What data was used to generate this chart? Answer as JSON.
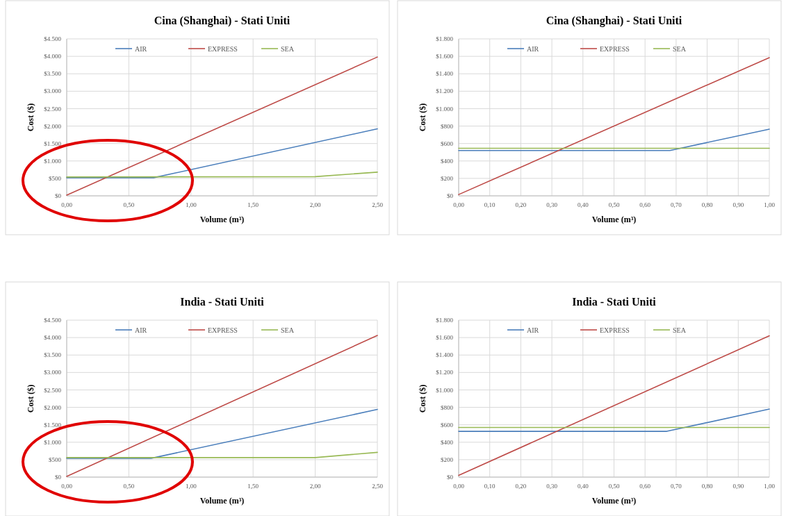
{
  "chart_data": [
    {
      "type": "line",
      "title": "Cina (Shanghai) - Stati Uniti",
      "xlabel": "Volume (m³)",
      "ylabel": "Cost ($)",
      "xlim": [
        0,
        2.5
      ],
      "xticks": [
        {
          "value": 0,
          "label": "0,00"
        },
        {
          "value": 0.5,
          "label": "0,50"
        },
        {
          "value": 1,
          "label": "1,00"
        },
        {
          "value": 1.5,
          "label": "1,50"
        },
        {
          "value": 2,
          "label": "2,00"
        },
        {
          "value": 2.5,
          "label": "2,50"
        }
      ],
      "ylim": [
        0,
        4500
      ],
      "yticks": [
        {
          "value": 0,
          "label": "$0"
        },
        {
          "value": 500,
          "label": "$500"
        },
        {
          "value": 1000,
          "label": "$1.000"
        },
        {
          "value": 1500,
          "label": "$1.500"
        },
        {
          "value": 2000,
          "label": "$2.000"
        },
        {
          "value": 2500,
          "label": "$2.500"
        },
        {
          "value": 3000,
          "label": "$3.000"
        },
        {
          "value": 3500,
          "label": "$3.500"
        },
        {
          "value": 4000,
          "label": "$4.000"
        },
        {
          "value": 4500,
          "label": "$4.500"
        }
      ],
      "grid": true,
      "legend": "top",
      "series": [
        {
          "name": "AIR",
          "color": "#4a7ebb",
          "x": [
            0,
            0.7,
            2.5
          ],
          "values": [
            520,
            520,
            1920
          ]
        },
        {
          "name": "EXPRESS",
          "color": "#be4b48",
          "x": [
            0,
            2.5
          ],
          "values": [
            20,
            3980
          ]
        },
        {
          "name": "SEA",
          "color": "#98b954",
          "x": [
            0,
            2,
            2.5
          ],
          "values": [
            540,
            550,
            680
          ]
        }
      ]
    },
    {
      "type": "line",
      "title": "Cina (Shanghai) - Stati Uniti",
      "xlabel": "Volume (m³)",
      "ylabel": "Cost ($)",
      "xlim": [
        0,
        1
      ],
      "xticks": [
        {
          "value": 0,
          "label": "0,00"
        },
        {
          "value": 0.1,
          "label": "0,10"
        },
        {
          "value": 0.2,
          "label": "0,20"
        },
        {
          "value": 0.3,
          "label": "0,30"
        },
        {
          "value": 0.4,
          "label": "0,40"
        },
        {
          "value": 0.5,
          "label": "0,50"
        },
        {
          "value": 0.6,
          "label": "0,60"
        },
        {
          "value": 0.7,
          "label": "0,70"
        },
        {
          "value": 0.8,
          "label": "0,80"
        },
        {
          "value": 0.9,
          "label": "0,90"
        },
        {
          "value": 1,
          "label": "1,00"
        }
      ],
      "ylim": [
        0,
        1800
      ],
      "yticks": [
        {
          "value": 0,
          "label": "$0"
        },
        {
          "value": 200,
          "label": "$200"
        },
        {
          "value": 400,
          "label": "$400"
        },
        {
          "value": 600,
          "label": "$600"
        },
        {
          "value": 800,
          "label": "$800"
        },
        {
          "value": 1000,
          "label": "$1.000"
        },
        {
          "value": 1200,
          "label": "$1.200"
        },
        {
          "value": 1400,
          "label": "$1.400"
        },
        {
          "value": 1600,
          "label": "$1.600"
        },
        {
          "value": 1800,
          "label": "$1.800"
        }
      ],
      "grid": true,
      "legend": "top",
      "series": [
        {
          "name": "AIR",
          "color": "#4a7ebb",
          "x": [
            0,
            0.68,
            1
          ],
          "values": [
            520,
            520,
            765
          ]
        },
        {
          "name": "EXPRESS",
          "color": "#be4b48",
          "x": [
            0,
            1
          ],
          "values": [
            15,
            1585
          ]
        },
        {
          "name": "SEA",
          "color": "#98b954",
          "x": [
            0,
            1
          ],
          "values": [
            545,
            545
          ]
        }
      ]
    },
    {
      "type": "line",
      "title": "India - Stati Uniti",
      "xlabel": "Volume (m³)",
      "ylabel": "Cost ($)",
      "xlim": [
        0,
        2.5
      ],
      "xticks": [
        {
          "value": 0,
          "label": "0,00"
        },
        {
          "value": 0.5,
          "label": "0,50"
        },
        {
          "value": 1,
          "label": "1,00"
        },
        {
          "value": 1.5,
          "label": "1,50"
        },
        {
          "value": 2,
          "label": "2,00"
        },
        {
          "value": 2.5,
          "label": "2,50"
        }
      ],
      "ylim": [
        0,
        4500
      ],
      "yticks": [
        {
          "value": 0,
          "label": "$0"
        },
        {
          "value": 500,
          "label": "$500"
        },
        {
          "value": 1000,
          "label": "$1.000"
        },
        {
          "value": 1500,
          "label": "$1.500"
        },
        {
          "value": 2000,
          "label": "$2.000"
        },
        {
          "value": 2500,
          "label": "$2.500"
        },
        {
          "value": 3000,
          "label": "$3.000"
        },
        {
          "value": 3500,
          "label": "$3.500"
        },
        {
          "value": 4000,
          "label": "$4.000"
        },
        {
          "value": 4500,
          "label": "$4.500"
        }
      ],
      "grid": true,
      "legend": "top",
      "series": [
        {
          "name": "AIR",
          "color": "#4a7ebb",
          "x": [
            0,
            0.68,
            2.5
          ],
          "values": [
            540,
            540,
            1940
          ]
        },
        {
          "name": "EXPRESS",
          "color": "#be4b48",
          "x": [
            0,
            2.5
          ],
          "values": [
            20,
            4060
          ]
        },
        {
          "name": "SEA",
          "color": "#98b954",
          "x": [
            0,
            2,
            2.5
          ],
          "values": [
            560,
            560,
            710
          ]
        }
      ]
    },
    {
      "type": "line",
      "title": "India - Stati Uniti",
      "xlabel": "Volume (m³)",
      "ylabel": "Cost ($)",
      "xlim": [
        0,
        1
      ],
      "xticks": [
        {
          "value": 0,
          "label": "0,00"
        },
        {
          "value": 0.1,
          "label": "0,10"
        },
        {
          "value": 0.2,
          "label": "0,20"
        },
        {
          "value": 0.3,
          "label": "0,30"
        },
        {
          "value": 0.4,
          "label": "0,40"
        },
        {
          "value": 0.5,
          "label": "0,50"
        },
        {
          "value": 0.6,
          "label": "0,60"
        },
        {
          "value": 0.7,
          "label": "0,70"
        },
        {
          "value": 0.8,
          "label": "0,80"
        },
        {
          "value": 0.9,
          "label": "0,90"
        },
        {
          "value": 1,
          "label": "1,00"
        }
      ],
      "ylim": [
        0,
        1800
      ],
      "yticks": [
        {
          "value": 0,
          "label": "$0"
        },
        {
          "value": 200,
          "label": "$200"
        },
        {
          "value": 400,
          "label": "$400"
        },
        {
          "value": 600,
          "label": "$600"
        },
        {
          "value": 800,
          "label": "$800"
        },
        {
          "value": 1000,
          "label": "$1.000"
        },
        {
          "value": 1200,
          "label": "$1.200"
        },
        {
          "value": 1400,
          "label": "$1.400"
        },
        {
          "value": 1600,
          "label": "$1.600"
        },
        {
          "value": 1800,
          "label": "$1.800"
        }
      ],
      "grid": true,
      "legend": "top",
      "series": [
        {
          "name": "AIR",
          "color": "#4a7ebb",
          "x": [
            0,
            0.67,
            1
          ],
          "values": [
            525,
            525,
            780
          ]
        },
        {
          "name": "EXPRESS",
          "color": "#be4b48",
          "x": [
            0,
            1
          ],
          "values": [
            20,
            1620
          ]
        },
        {
          "name": "SEA",
          "color": "#98b954",
          "x": [
            0,
            1
          ],
          "values": [
            570,
            570
          ]
        }
      ]
    }
  ]
}
